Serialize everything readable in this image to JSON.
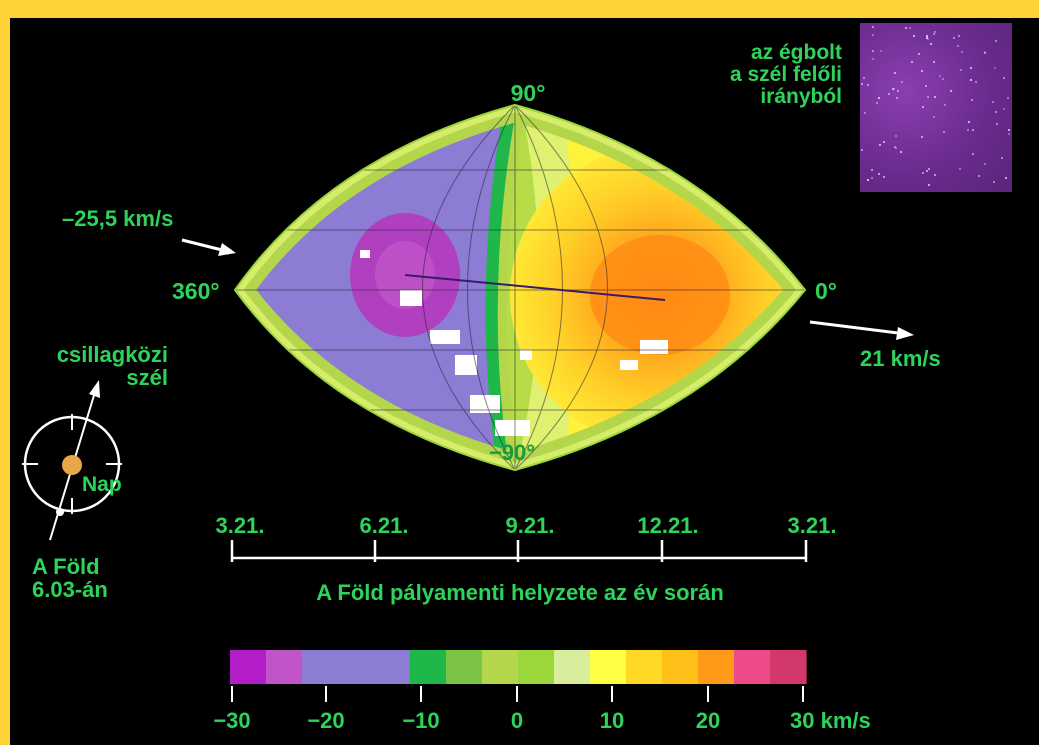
{
  "map": {
    "top_label": "90°",
    "bottom_label": "−90°",
    "left_label": "360°",
    "right_label": "0°"
  },
  "arrows": {
    "incoming_speed": "–25,5 km/s",
    "outgoing_speed": "21 km/s"
  },
  "sky_inset": {
    "caption_lines": [
      "az égbolt",
      "a szél felőli",
      "irányból"
    ]
  },
  "orbit_diagram": {
    "wind_label_lines": [
      "csillagközi",
      "szél"
    ],
    "sun_label": "Nap",
    "earth_label_lines": [
      "A Föld",
      "6.03-án"
    ]
  },
  "timeline": {
    "ticks": [
      "3.21.",
      "6.21.",
      "9.21.",
      "12.21.",
      "3.21."
    ],
    "caption": "A Föld pályamenti helyzete az év során"
  },
  "colorbar": {
    "colors": [
      "#b41ec8",
      "#c054c8",
      "#8c7cd4",
      "#8c7cd4",
      "#8c7cd4",
      "#1fb64a",
      "#7cc443",
      "#b4d64a",
      "#9bd63a",
      "#d8ee9c",
      "#ffff44",
      "#ffd826",
      "#ffc01a",
      "#ff9a18",
      "#ee4a8a",
      "#d2386a"
    ],
    "tick_labels": [
      "−30",
      "−20",
      "−10",
      "0",
      "10",
      "20",
      "30 km/s"
    ]
  },
  "colors": {
    "label_green": "#2ed35a",
    "background": "#000000",
    "border": "#ffd23a"
  }
}
